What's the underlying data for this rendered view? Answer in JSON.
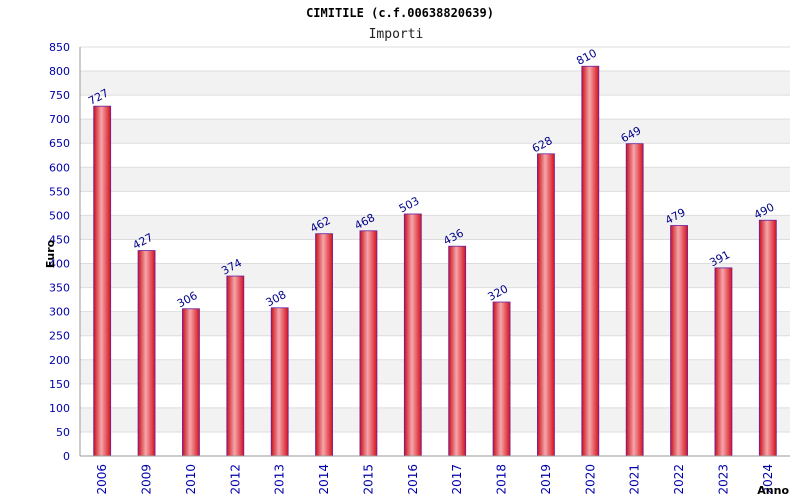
{
  "chart_data": {
    "type": "bar",
    "title": "CIMITILE (c.f.00638820639)",
    "subtitle": "Importi",
    "xlabel": "Anno",
    "ylabel": "Euro",
    "categories": [
      "2006",
      "2009",
      "2010",
      "2012",
      "2013",
      "2014",
      "2015",
      "2016",
      "2017",
      "2018",
      "2019",
      "2020",
      "2021",
      "2022",
      "2023",
      "2024"
    ],
    "values": [
      727,
      427,
      306,
      374,
      308,
      462,
      468,
      503,
      436,
      320,
      628,
      810,
      649,
      479,
      391,
      490
    ],
    "ylim": [
      0,
      850
    ],
    "yticks": [
      0,
      50,
      100,
      150,
      200,
      250,
      300,
      350,
      400,
      450,
      500,
      550,
      600,
      650,
      700,
      750,
      800,
      850
    ],
    "grid": true,
    "legend": "none",
    "colors": {
      "bar": "#e8202a",
      "bar_highlight": "#f6a6aa",
      "bar_edge": "#6a1fa0",
      "tick_text": "#0000aa",
      "band": "#f2f2f2"
    }
  }
}
